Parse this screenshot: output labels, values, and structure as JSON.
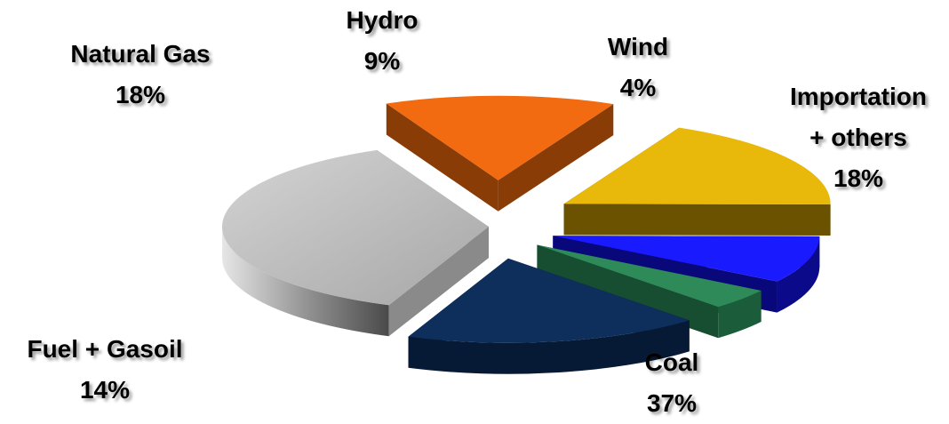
{
  "chart_data": {
    "type": "pie",
    "style": "3d-exploded",
    "slices": [
      {
        "label": "Coal",
        "value": 37,
        "display": "37%",
        "color": "#bdbdbd"
      },
      {
        "label": "Fuel + Gasoil",
        "value": 14,
        "display": "14%",
        "color": "#f26b10"
      },
      {
        "label": "Natural Gas",
        "value": 18,
        "display": "18%",
        "color": "#e8b80a"
      },
      {
        "label": "Hydro",
        "value": 9,
        "display": "9%",
        "color": "#1a1aff"
      },
      {
        "label": "Wind",
        "value": 4,
        "display": "4%",
        "color": "#2f8a5a"
      },
      {
        "label": "Importation\n+ others",
        "value": 18,
        "display": "18%",
        "color": "#0e2f5c"
      }
    ]
  }
}
